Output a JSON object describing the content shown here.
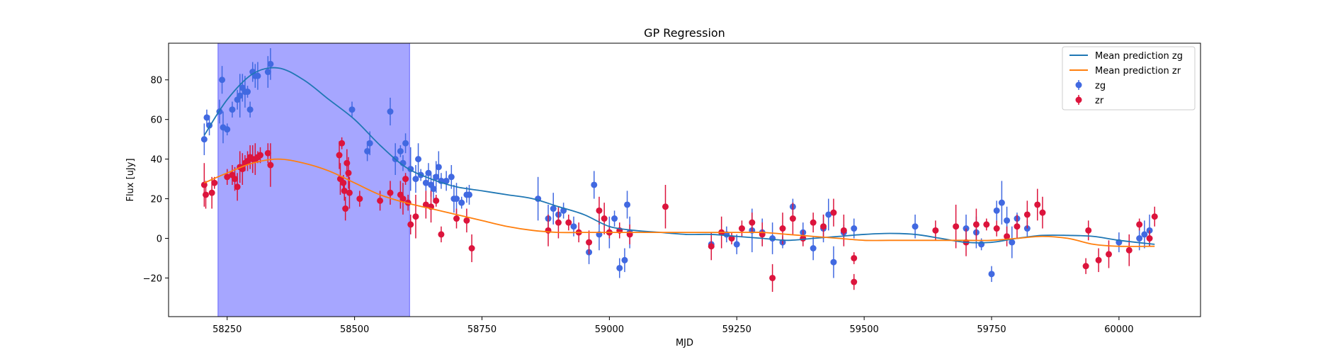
{
  "chart_data": {
    "type": "scatter",
    "title": "GP Regression",
    "xlabel": "MJD",
    "ylabel": "Flux [uJy]",
    "xlim": [
      58135,
      60160
    ],
    "ylim": [
      -39.5,
      98.5
    ],
    "x_ticks": [
      58250,
      58500,
      58750,
      59000,
      59250,
      59500,
      59750,
      60000
    ],
    "y_ticks": [
      -20,
      0,
      20,
      40,
      60,
      80
    ],
    "highlight_span": {
      "x0": 58232,
      "x1": 58608,
      "color": "#0000ff"
    },
    "legend": {
      "position": "top-right",
      "entries": [
        {
          "label": "Mean prediction zg",
          "kind": "line",
          "color": "#1f77b4"
        },
        {
          "label": "Mean prediction zr",
          "kind": "line",
          "color": "#ff7f0e"
        },
        {
          "label": "zg",
          "kind": "marker",
          "color": "#4169e1"
        },
        {
          "label": "zr",
          "kind": "marker",
          "color": "#dc143c"
        }
      ]
    },
    "lines": [
      {
        "name": "Mean prediction zg",
        "color": "#1f77b4",
        "x": [
          58205,
          58250,
          58300,
          58350,
          58400,
          58450,
          58500,
          58550,
          58600,
          58650,
          58700,
          58750,
          58800,
          58850,
          58900,
          58950,
          59000,
          59050,
          59100,
          59150,
          59200,
          59250,
          59300,
          59350,
          59400,
          59450,
          59500,
          59550,
          59600,
          59650,
          59700,
          59750,
          59800,
          59850,
          59900,
          59950,
          60000,
          60070
        ],
        "y": [
          52,
          70,
          83,
          86,
          80,
          70,
          60,
          47,
          36,
          30,
          26,
          24,
          22,
          20,
          16,
          12,
          6,
          4,
          3,
          2,
          2,
          1,
          0,
          -1,
          0,
          1,
          2,
          2.5,
          2,
          0,
          -2,
          -2,
          0,
          1.5,
          1.5,
          1,
          -1,
          -3
        ]
      },
      {
        "name": "Mean prediction zr",
        "color": "#ff7f0e",
        "x": [
          58205,
          58250,
          58300,
          58350,
          58400,
          58450,
          58500,
          58550,
          58600,
          58650,
          58700,
          58750,
          58800,
          58850,
          58900,
          58950,
          59000,
          59050,
          59100,
          59150,
          59200,
          59250,
          59300,
          59350,
          59400,
          59450,
          59500,
          59550,
          59600,
          59650,
          59700,
          59750,
          59800,
          59850,
          59900,
          59950,
          60000,
          60070
        ],
        "y": [
          28,
          33,
          38,
          40,
          38,
          34,
          28,
          22,
          18,
          15,
          12,
          9,
          6,
          4,
          3,
          3,
          3,
          3,
          3,
          3,
          3,
          3,
          3,
          2,
          1,
          0,
          -1,
          -1,
          -1,
          -1,
          -1,
          -1,
          0,
          1,
          0,
          -3,
          -4,
          -4
        ]
      }
    ],
    "series": [
      {
        "name": "zg",
        "color": "#4169e1",
        "x": [
          58205,
          58210,
          58215,
          58235,
          58240,
          58242,
          58250,
          58260,
          58270,
          58275,
          58280,
          58285,
          58290,
          58295,
          58300,
          58305,
          58310,
          58330,
          58335,
          58495,
          58525,
          58530,
          58570,
          58580,
          58590,
          58595,
          58600,
          58610,
          58620,
          58625,
          58630,
          58640,
          58645,
          58650,
          58655,
          58660,
          58665,
          58670,
          58680,
          58690,
          58695,
          58700,
          58710,
          58720,
          58725,
          58860,
          58880,
          58890,
          58900,
          58910,
          58930,
          58960,
          58970,
          58980,
          59000,
          59010,
          59020,
          59030,
          59035,
          59040,
          59200,
          59230,
          59250,
          59280,
          59300,
          59320,
          59340,
          59360,
          59380,
          59400,
          59420,
          59430,
          59440,
          59460,
          59480,
          59600,
          59700,
          59720,
          59730,
          59750,
          59760,
          59770,
          59780,
          59790,
          59800,
          59820,
          60000,
          60040,
          60050,
          60060
        ],
        "y": [
          50,
          61,
          57,
          64,
          80,
          56,
          55,
          65,
          70,
          72,
          76,
          74,
          74,
          65,
          84,
          82,
          82,
          84,
          88,
          65,
          44,
          48,
          64,
          40,
          44,
          38,
          48,
          35,
          30,
          40,
          32,
          28,
          33,
          27,
          25,
          31,
          36,
          29,
          29,
          31,
          20,
          20,
          18,
          22,
          22,
          20,
          10,
          15,
          12,
          14,
          6,
          -7,
          27,
          2,
          3,
          10,
          -15,
          -11,
          17,
          3,
          -3,
          2,
          -3,
          4,
          3,
          0,
          -2,
          16,
          3,
          -5,
          5,
          12,
          -12,
          3,
          5,
          6,
          5,
          3,
          -3,
          -18,
          14,
          18,
          9,
          -2,
          10,
          5,
          -2,
          0,
          2,
          4
        ]
      },
      {
        "name": "zr",
        "color": "#dc143c",
        "x": [
          58205,
          58208,
          58220,
          58225,
          58250,
          58260,
          58265,
          58270,
          58275,
          58280,
          58285,
          58290,
          58295,
          58300,
          58305,
          58310,
          58315,
          58330,
          58335,
          58470,
          58472,
          58475,
          58478,
          58480,
          58482,
          58485,
          58488,
          58490,
          58510,
          58550,
          58570,
          58590,
          58595,
          58600,
          58605,
          58610,
          58620,
          58640,
          58650,
          58660,
          58670,
          58700,
          58720,
          58730,
          58880,
          58900,
          58920,
          58940,
          58960,
          58980,
          58990,
          59000,
          59020,
          59040,
          59110,
          59200,
          59220,
          59240,
          59260,
          59280,
          59300,
          59320,
          59340,
          59360,
          59380,
          59400,
          59420,
          59440,
          59460,
          59480,
          59480,
          59640,
          59680,
          59700,
          59720,
          59740,
          59760,
          59780,
          59800,
          59820,
          59840,
          59850,
          59935,
          59940,
          59960,
          59980,
          60020,
          60040,
          60060,
          60070
        ],
        "y": [
          27,
          22,
          23,
          28,
          31,
          32,
          30,
          26,
          36,
          35,
          38,
          39,
          41,
          40,
          40,
          41,
          42,
          43,
          37,
          42,
          30,
          48,
          28,
          24,
          15,
          38,
          33,
          23,
          20,
          19,
          23,
          22,
          20,
          30,
          18,
          7,
          11,
          17,
          16,
          19,
          2,
          10,
          9,
          -5,
          4,
          8,
          8,
          3,
          -2,
          14,
          10,
          3,
          4,
          2,
          16,
          -4,
          3,
          0,
          5,
          8,
          2,
          -20,
          5,
          10,
          0,
          8,
          6,
          13,
          4,
          -10,
          -22,
          4,
          6,
          -2,
          7,
          7,
          5,
          1,
          6,
          12,
          17,
          13,
          -14,
          4,
          -11,
          -8,
          -6,
          7,
          0,
          11
        ]
      }
    ]
  }
}
